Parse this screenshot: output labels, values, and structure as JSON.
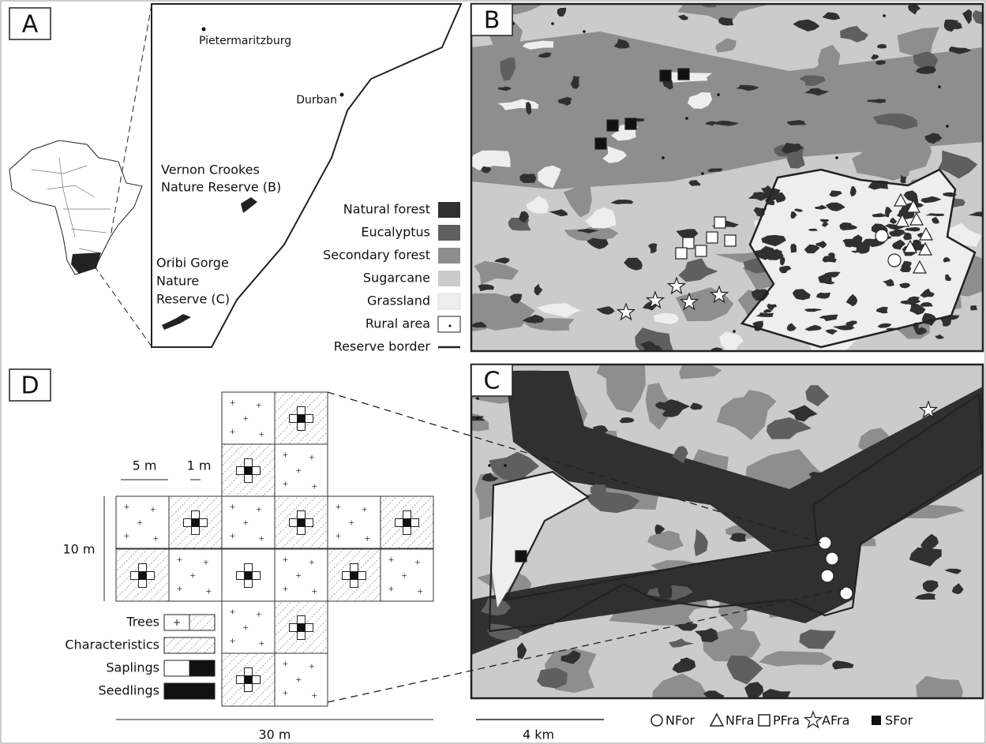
{
  "panel_labels": [
    "A",
    "B",
    "C",
    "D"
  ],
  "panel_a": {
    "cities": [
      "Pietermaritzburg",
      "Durban"
    ],
    "reserves": [
      [
        "Vernon Crookes",
        "Nature Reserve (B)"
      ],
      [
        "Oribi Gorge",
        "Nature",
        "Reserve (C)"
      ]
    ]
  },
  "land_use_legend": [
    {
      "label": "Natural forest",
      "color": "#303030"
    },
    {
      "label": "Eucalyptus",
      "color": "#5f5f5f"
    },
    {
      "label": "Secondary forest",
      "color": "#8e8e8e"
    },
    {
      "label": "Sugarcane",
      "color": "#cbcbcb"
    },
    {
      "label": "Grassland",
      "color": "#eeeeee"
    },
    {
      "label": "Rural area"
    },
    {
      "label": "Reserve border"
    }
  ],
  "plot_design": {
    "scales": [
      "5 m",
      "1 m",
      "10 m",
      "30 m"
    ],
    "legend": [
      "Trees",
      "Characteristics",
      "Saplings",
      "Seedlings"
    ]
  },
  "map_scale": "4 km",
  "site_types": [
    "NFor",
    "NFra",
    "PFra",
    "AFra",
    "SFor"
  ]
}
